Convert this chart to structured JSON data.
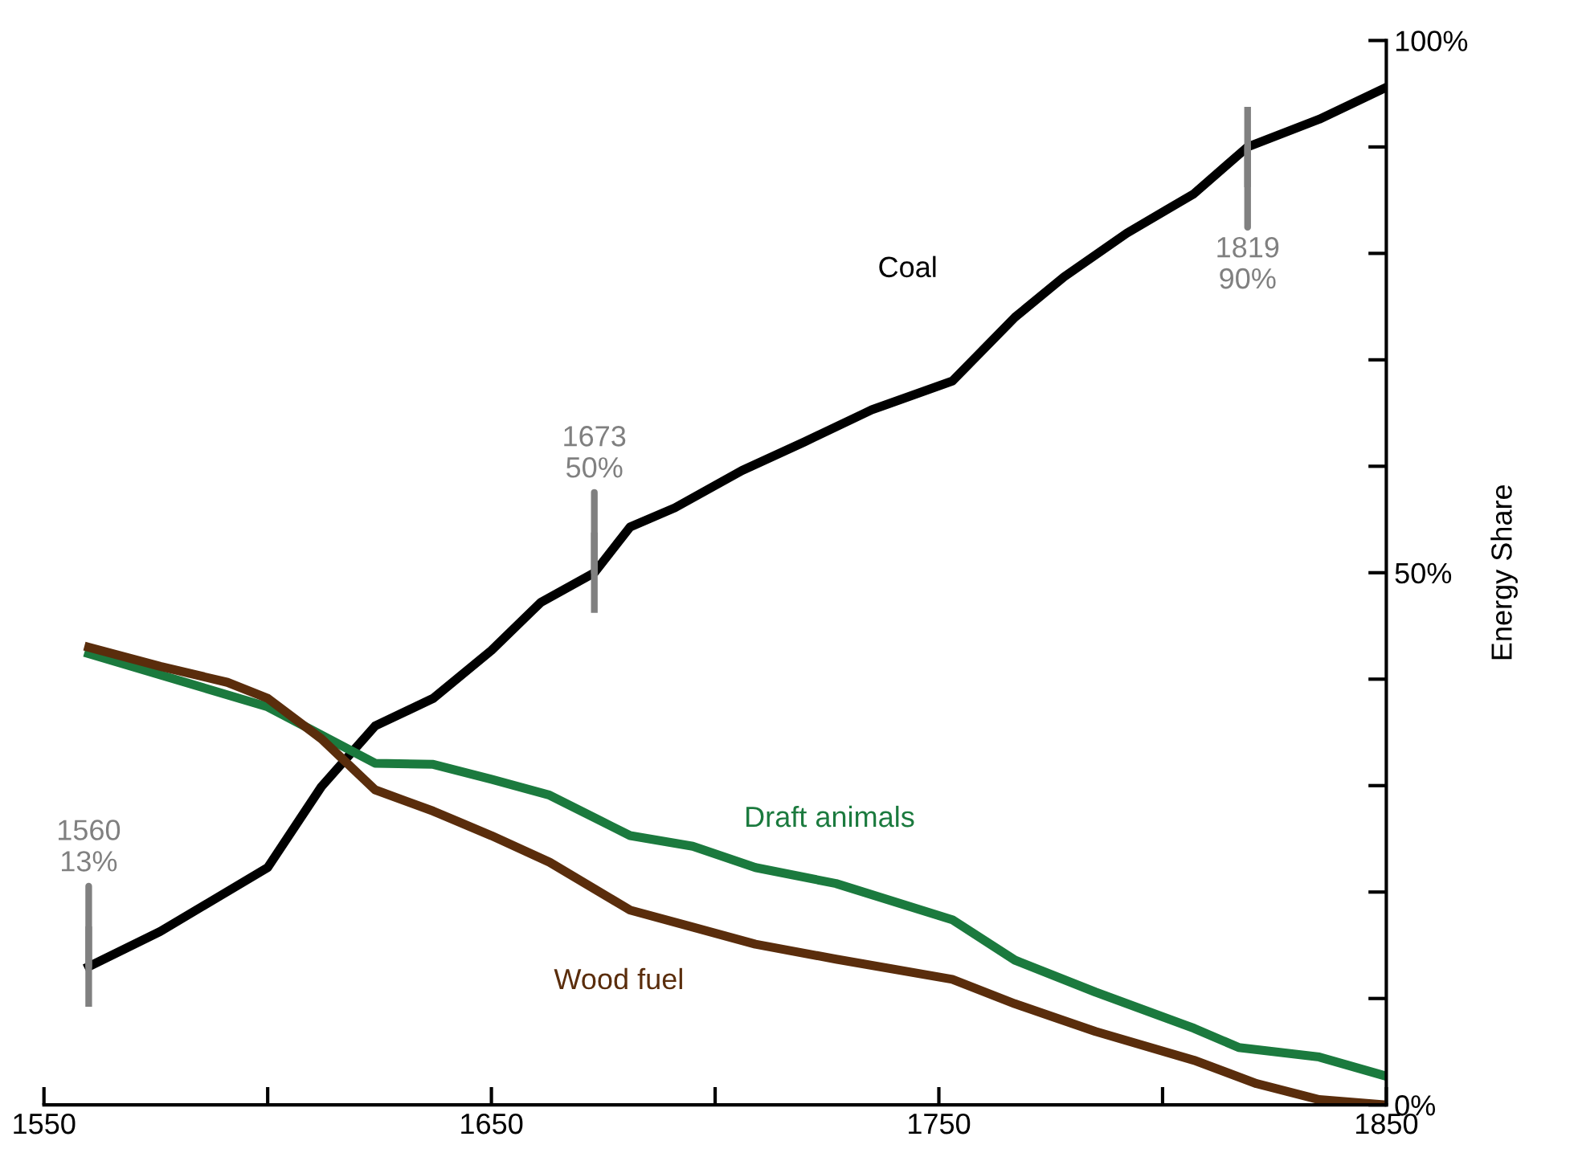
{
  "chart_data": {
    "type": "line",
    "ylabel": "Energy Share",
    "xlim": [
      1550,
      1850
    ],
    "xticks": [
      1550,
      {
        "value": 1600,
        "label": null
      },
      1650,
      {
        "value": 1700,
        "label": null
      },
      1750,
      {
        "value": 1800,
        "label": null
      },
      1850
    ],
    "ylim": [
      0,
      100
    ],
    "yticks": [
      {
        "value": 0,
        "label": "0%"
      },
      {
        "value": 10,
        "label": null
      },
      {
        "value": 20,
        "label": null
      },
      {
        "value": 30,
        "label": null
      },
      {
        "value": 40,
        "label": null
      },
      {
        "value": 50,
        "label": "50%"
      },
      {
        "value": 60,
        "label": null
      },
      {
        "value": 70,
        "label": null
      },
      {
        "value": 80,
        "label": null
      },
      {
        "value": 90,
        "label": null
      },
      {
        "value": 100,
        "label": "100%"
      }
    ],
    "grid": false,
    "legend": false,
    "marker": "none",
    "line_style": "solid",
    "series": [
      {
        "name": "Coal",
        "color": "#000000",
        "x": [
          1560,
          1576,
          1600,
          1612,
          1624,
          1637,
          1650,
          1661,
          1673,
          1681,
          1691,
          1706,
          1720,
          1735,
          1753,
          1767,
          1778,
          1792,
          1807,
          1819,
          1835,
          1850
        ],
        "values": [
          13,
          16.3,
          22.3,
          29.9,
          35.6,
          38.2,
          42.7,
          47.2,
          50,
          54.3,
          56.1,
          59.6,
          62.3,
          65.3,
          68,
          74,
          77.8,
          81.9,
          85.6,
          90,
          92.6,
          95.6
        ]
      },
      {
        "name": "Draft animals",
        "color": "#1b7a3e",
        "x": [
          1560,
          1576,
          1600,
          1624,
          1637,
          1650,
          1663,
          1681,
          1695,
          1709,
          1727,
          1753,
          1767,
          1785,
          1807,
          1817,
          1835,
          1850
        ],
        "values": [
          42.4,
          40.4,
          37.4,
          32.1,
          32,
          30.6,
          29.1,
          25.3,
          24.3,
          22.3,
          20.8,
          17.4,
          13.6,
          10.6,
          7.2,
          5.4,
          4.5,
          2.7
        ]
      },
      {
        "name": "Wood fuel",
        "color": "#5a2d0c",
        "x": [
          1560,
          1576,
          1591,
          1600,
          1612,
          1624,
          1637,
          1650,
          1663,
          1681,
          1695,
          1709,
          1727,
          1753,
          1767,
          1785,
          1807,
          1821,
          1835,
          1850
        ],
        "values": [
          43,
          41.2,
          39.7,
          38.2,
          34.4,
          29.6,
          27.6,
          25.3,
          22.8,
          18.3,
          16.7,
          15.1,
          13.7,
          11.8,
          9.5,
          6.9,
          4.2,
          2,
          0.5,
          0
        ]
      }
    ],
    "annotations": [
      {
        "text": "1560\n13%",
        "x": 1560,
        "y": 13
      },
      {
        "text": "1673\n50%",
        "x": 1673,
        "y": 50
      },
      {
        "text": "1819\n90%",
        "x": 1819,
        "y": 90
      }
    ]
  }
}
